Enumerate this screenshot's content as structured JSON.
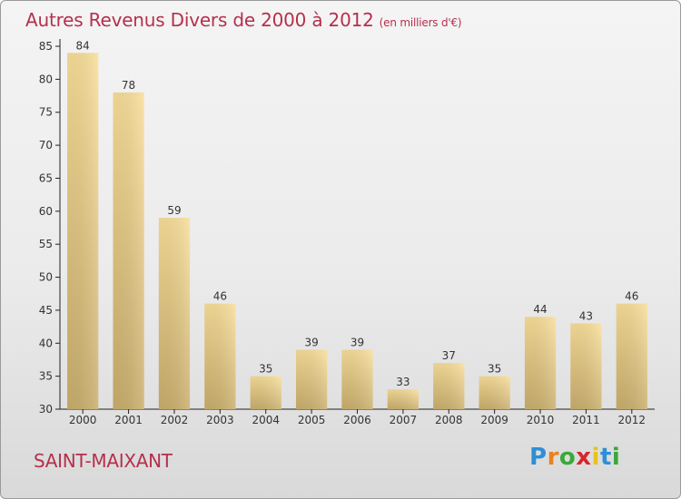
{
  "chart_data": {
    "type": "bar",
    "title": "Autres Revenus Divers de 2000 à 2012",
    "subtitle": "(en milliers d'€)",
    "categories": [
      "2000",
      "2001",
      "2002",
      "2003",
      "2004",
      "2005",
      "2006",
      "2007",
      "2008",
      "2009",
      "2010",
      "2011",
      "2012"
    ],
    "values": [
      84,
      78,
      59,
      46,
      35,
      39,
      39,
      33,
      37,
      35,
      44,
      43,
      46
    ],
    "ylim": [
      30,
      85
    ],
    "yticks": [
      30,
      35,
      40,
      45,
      50,
      55,
      60,
      65,
      70,
      75,
      80,
      85
    ],
    "grid": false,
    "bar_color_light": "#f7dd98",
    "bar_color_dark": "#c8ad6b"
  },
  "footer": {
    "commune": "SAINT-MAIXANT"
  },
  "logo": {
    "letters": [
      "P",
      "r",
      "o",
      "x",
      "i",
      "t",
      "i"
    ],
    "colors": [
      "#2d8fd5",
      "#e8821e",
      "#3aa83a",
      "#d6262d",
      "#e8c21e",
      "#2d8fd5",
      "#3aa83a"
    ]
  },
  "colors": {
    "title": "#b5304c",
    "axis": "#333333"
  }
}
